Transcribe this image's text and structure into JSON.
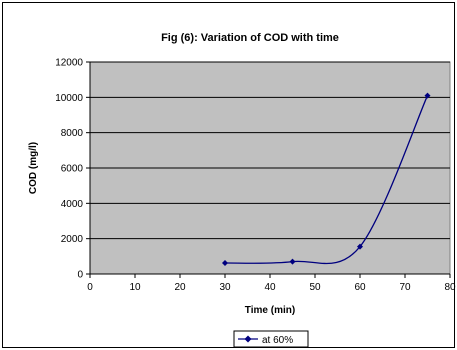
{
  "chart_data": {
    "type": "line",
    "title": "Fig (6): Variation of COD with time",
    "xlabel": "Time (min)",
    "ylabel": "COD (mg/l)",
    "xlim": [
      0,
      80
    ],
    "ylim": [
      0,
      12000
    ],
    "xticks": [
      "0",
      "10",
      "20",
      "30",
      "40",
      "50",
      "60",
      "70",
      "80"
    ],
    "yticks": [
      "0",
      "2000",
      "4000",
      "6000",
      "8000",
      "10000",
      "12000"
    ],
    "grid": "horizontal",
    "legend": "bottom",
    "series": [
      {
        "name": "at 60%",
        "color": "#00007f",
        "marker": "diamond",
        "x": [
          30,
          45,
          60,
          75
        ],
        "y": [
          620,
          700,
          1550,
          10100
        ]
      }
    ]
  }
}
